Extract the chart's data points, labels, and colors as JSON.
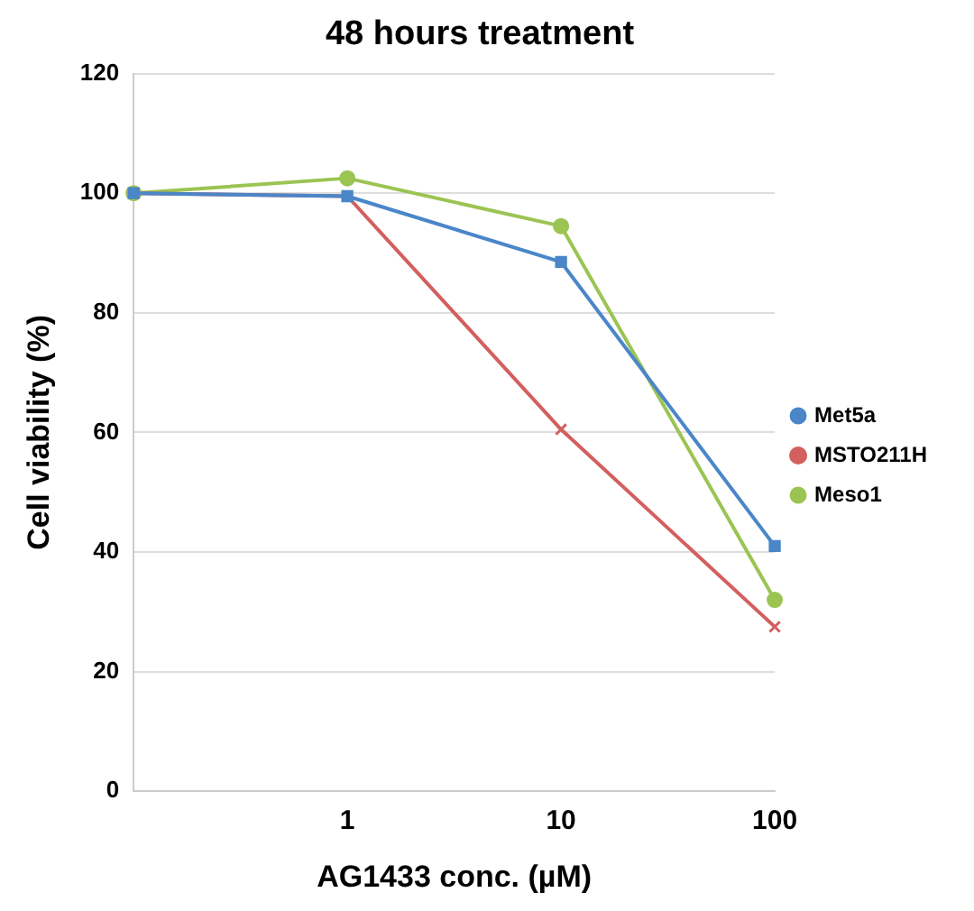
{
  "chart_data": {
    "type": "line",
    "title": "48 hours treatment",
    "xlabel": "AG1433 conc. (µM)",
    "ylabel": "Cell viability (%)",
    "categories": [
      null,
      "1",
      "10",
      "100"
    ],
    "series": [
      {
        "name": "Met5a",
        "color": "#4a86c8",
        "values": [
          100,
          99.5,
          88.5,
          41
        ],
        "marker": "square"
      },
      {
        "name": "MSTO211H",
        "color": "#d35f5f",
        "values": [
          100,
          99.5,
          60.5,
          27.5
        ],
        "marker": "cross"
      },
      {
        "name": "Meso1",
        "color": "#9bc453",
        "values": [
          100,
          102.5,
          94.5,
          32
        ],
        "marker": "circle"
      }
    ],
    "ylim": [
      0,
      120
    ],
    "yticks": [
      0,
      20,
      40,
      60,
      80,
      100,
      120
    ],
    "grid": "y",
    "legend": "right"
  }
}
